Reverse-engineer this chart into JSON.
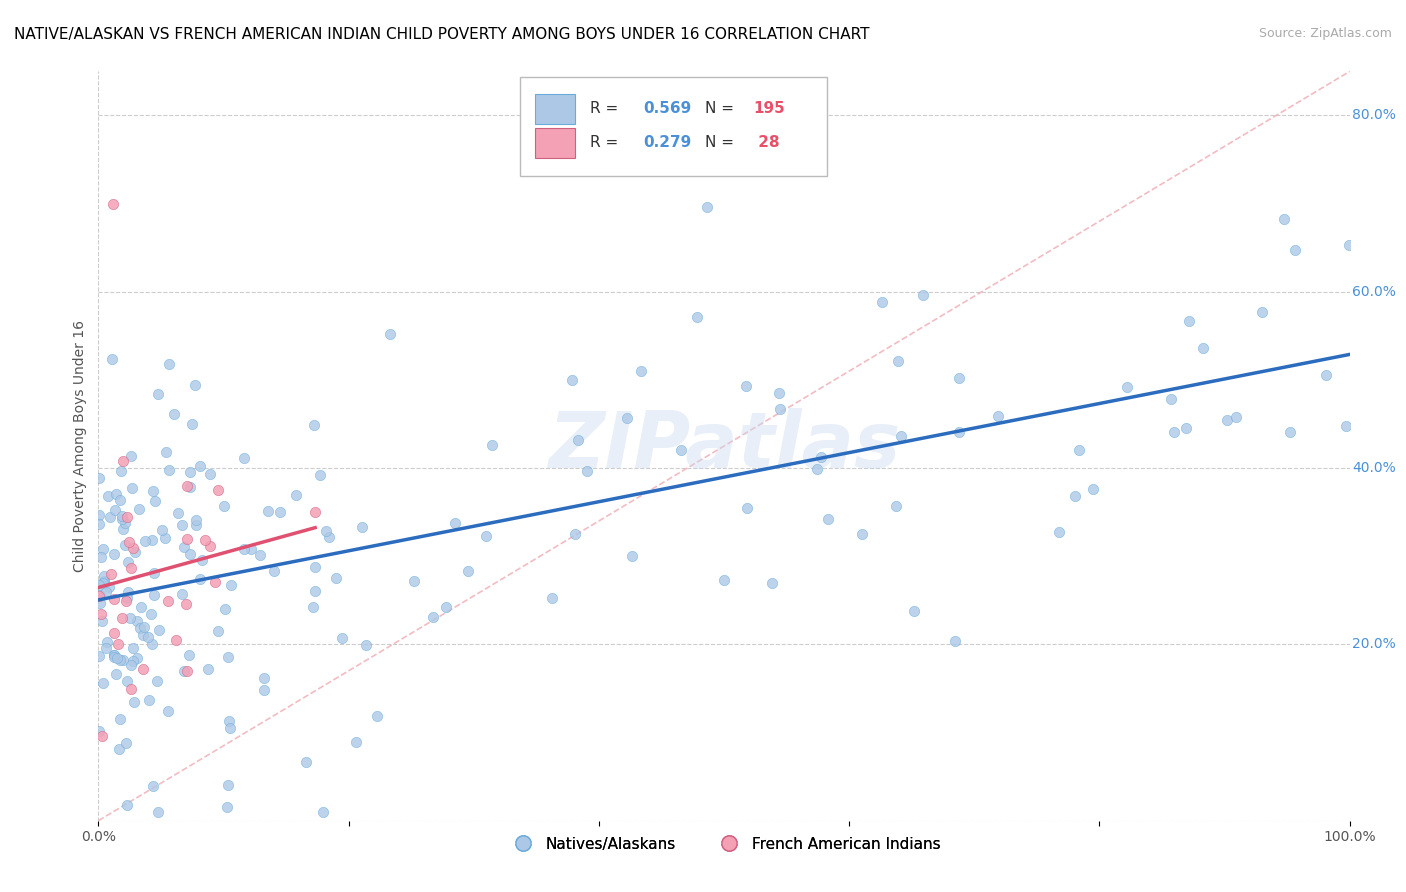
{
  "title": "NATIVE/ALASKAN VS FRENCH AMERICAN INDIAN CHILD POVERTY AMONG BOYS UNDER 16 CORRELATION CHART",
  "source": "Source: ZipAtlas.com",
  "ylabel": "Child Poverty Among Boys Under 16",
  "xlim": [
    0,
    1.0
  ],
  "ylim": [
    0,
    0.85
  ],
  "xticks": [
    0.0,
    0.2,
    0.4,
    0.6,
    0.8,
    1.0
  ],
  "xticklabels": [
    "0.0%",
    "",
    "",
    "",
    "",
    "100.0%"
  ],
  "ytick_vals": [
    0.2,
    0.4,
    0.6,
    0.8
  ],
  "ytick_labels": [
    "20.0%",
    "40.0%",
    "60.0%",
    "80.0%"
  ],
  "legend1_R": "0.569",
  "legend1_N": "195",
  "legend2_R": "0.279",
  "legend2_N": "28",
  "blue_dot_color": "#adc8e6",
  "pink_dot_color": "#f4a0b5",
  "blue_line_color": "#2b6cbf",
  "pink_line_color": "#e05070",
  "ref_line_color": "#f0b0b8",
  "grid_color": "#cccccc",
  "background_color": "#ffffff",
  "watermark": "ZIPatlas",
  "title_fontsize": 11,
  "label_fontsize": 10,
  "tick_fontsize": 10,
  "ytick_color": "#4a90d9",
  "xtick_color": "#555555"
}
